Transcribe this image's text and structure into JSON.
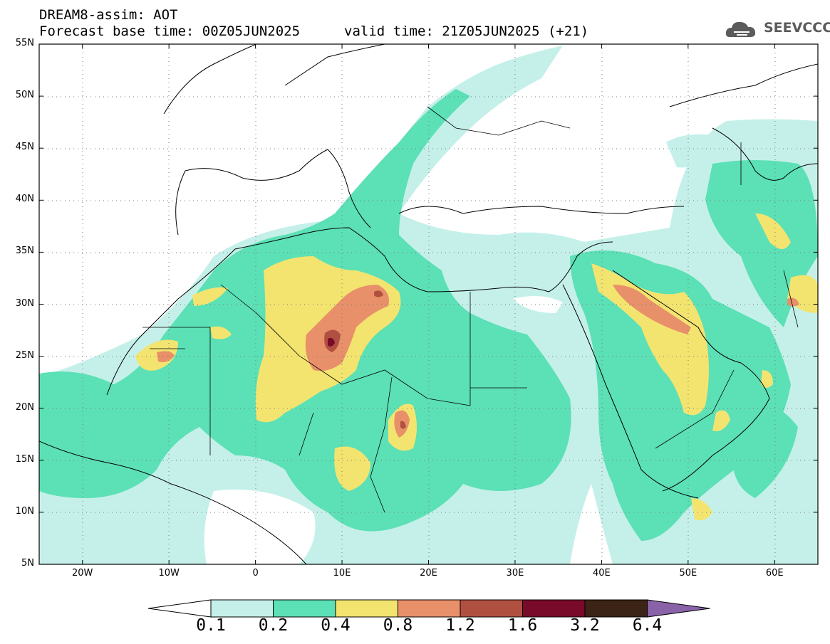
{
  "header": {
    "model_line": "DREAM8-assim: AOT",
    "base_time_line": "Forecast base time: 00Z05JUN2025",
    "valid_time_line": "valid time: 21Z05JUN2025 (+21)"
  },
  "logo": {
    "text": "SEEVCCC",
    "icon": "cloud-icon"
  },
  "map": {
    "lon_range": [
      -25,
      65
    ],
    "lat_range": [
      5,
      55
    ],
    "lat_ticks": [
      "5N",
      "10N",
      "15N",
      "20N",
      "25N",
      "30N",
      "35N",
      "40N",
      "45N",
      "50N",
      "55N"
    ],
    "lon_ticks": [
      "20W",
      "10W",
      "0",
      "10E",
      "20E",
      "30E",
      "40E",
      "50E",
      "60E"
    ],
    "grid": "dotted"
  },
  "colorbar": {
    "labels": [
      "0.1",
      "0.2",
      "0.4",
      "0.8",
      "1.2",
      "1.6",
      "3.2",
      "6.4"
    ],
    "colors": [
      "#c5f0ea",
      "#5ce0b5",
      "#f3e470",
      "#e8906a",
      "#b05040",
      "#7a0a2a",
      "#3b2416",
      "#8a62a8"
    ],
    "extend": "both"
  }
}
